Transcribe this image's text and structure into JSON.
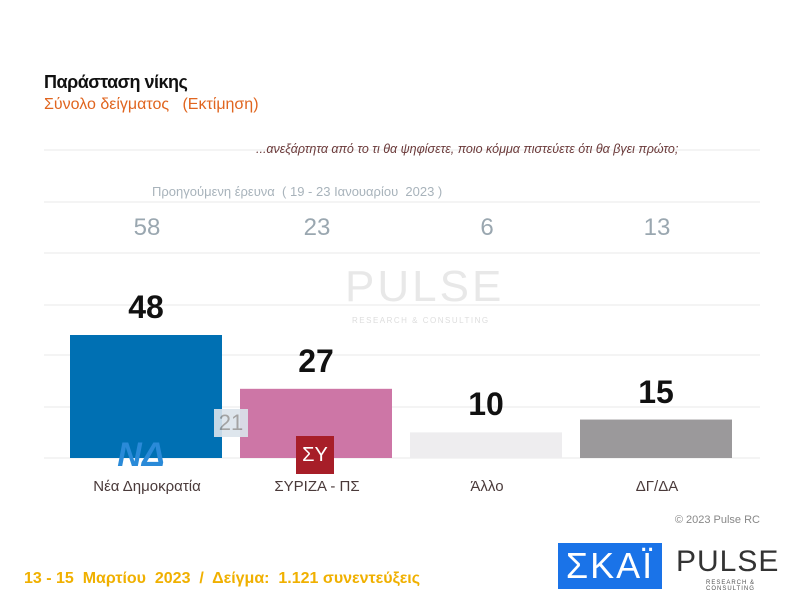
{
  "header": {
    "title": "Παράσταση νίκης",
    "subtitle": "Σύνολο δείγματος   (Εκτίμηση)",
    "question": "...ανεξάρτητα από το τι θα ψηφίσετε, ποιο κόμμα πιστεύετε ότι θα βγει πρώτο;"
  },
  "previous": {
    "label": "Προηγούμενη έρευνα  ( 19 - 23 Ιανουαρίου  2023 )",
    "values": [
      "58",
      "23",
      "6",
      "13"
    ]
  },
  "chart_data": {
    "type": "bar",
    "categories": [
      "Νέα Δημοκρατία",
      "ΣΥΡΙΖΑ - ΠΣ",
      "Άλλο",
      "ΔΓ/ΔΑ"
    ],
    "values": [
      48,
      27,
      10,
      15
    ],
    "colors": [
      "#0070b3",
      "#cd76a6",
      "#eeedef",
      "#9b999b"
    ],
    "ylim": [
      0,
      48
    ],
    "grid": true,
    "annotation": "21"
  },
  "logos": {
    "nd": "ΝΔ",
    "syriza": "ΣΥ",
    "skai": "ΣΚΑΪ",
    "pulse": "PULSE",
    "pulse_sub": "RESEARCH & CONSULTING"
  },
  "watermark": {
    "text": "PULSE",
    "sub": "RESEARCH & CONSULTING"
  },
  "copyright": "© 2023 Pulse RC",
  "footer": "13 - 15  Μαρτίου  2023  /  Δείγμα:  1.121 συνεντεύξεις"
}
